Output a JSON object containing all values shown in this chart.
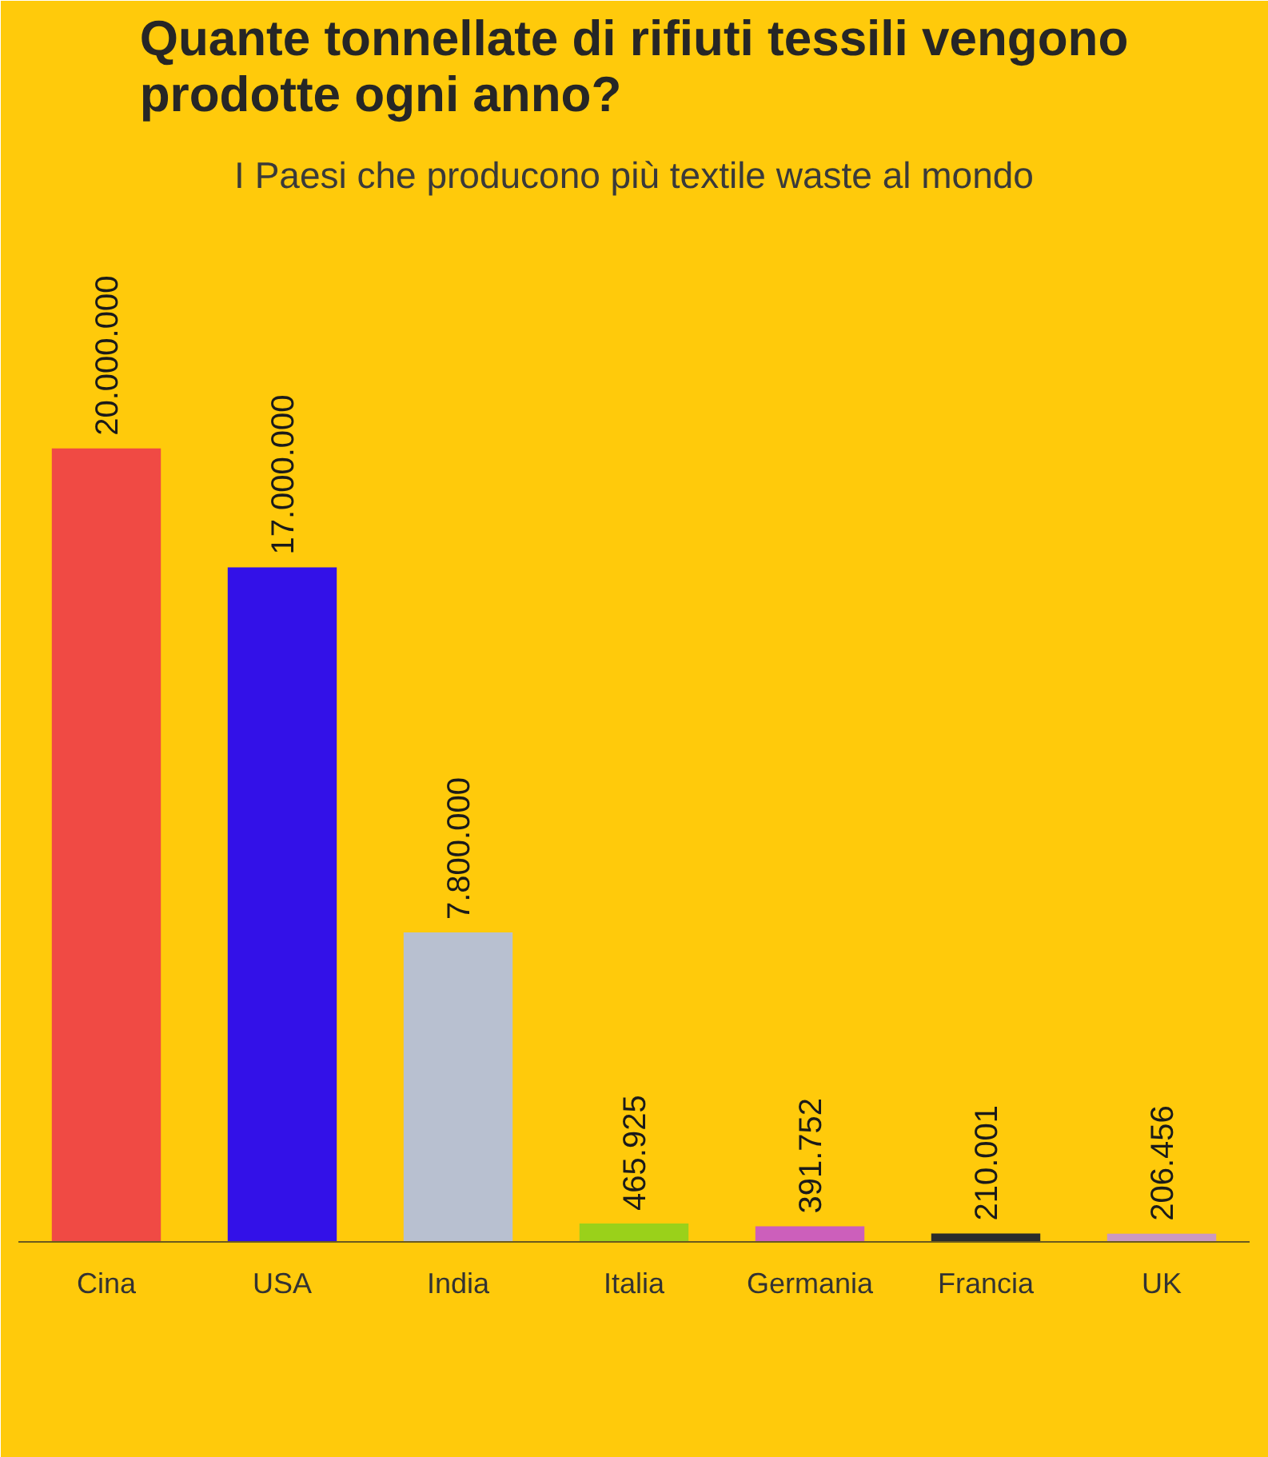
{
  "chart_data": {
    "type": "bar",
    "title": "Quante tonnellate di rifiuti tessili vengono prodotte ogni anno?",
    "subtitle": "I Paesi che producono più textile waste al mondo",
    "categories": [
      "Cina",
      "USA",
      "India",
      "Italia",
      "Germania",
      "Francia",
      "UK"
    ],
    "values": [
      20000000,
      17000000,
      7800000,
      465925,
      391752,
      210001,
      206456
    ],
    "value_labels": [
      "20.000.000",
      "17.000.000",
      "7.800.000",
      "465.925",
      "391.752",
      "210.001",
      "206.456"
    ],
    "colors": [
      "#f04a44",
      "#3311e8",
      "#b8c0d0",
      "#9ad11a",
      "#cc5fbb",
      "#2b2b2b",
      "#cc99c0"
    ]
  }
}
